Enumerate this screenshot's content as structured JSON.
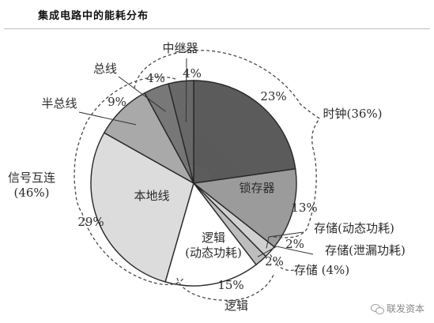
{
  "title": "集成电路中的能耗分布",
  "watermark": {
    "text": "联发资本",
    "icon": "wechat-icon"
  },
  "chart_data": {
    "type": "pie",
    "title": "集成电路中的能耗分布",
    "slices": [
      {
        "key": "clock",
        "label": "",
        "value": 23,
        "value_label": "23%",
        "color": "#5c5c5c"
      },
      {
        "key": "latch",
        "label": "锁存器",
        "value": 13,
        "value_label": "13%",
        "color": "#9b9b9b"
      },
      {
        "key": "mem_dynamic",
        "label": "",
        "value": 2,
        "value_label": "",
        "color": "#d0d0d0"
      },
      {
        "key": "mem_leak",
        "label": "",
        "value": 2,
        "value_label": "2%",
        "color": "#bdbdbd"
      },
      {
        "key": "logic",
        "label": "逻辑\n(动态功耗)",
        "value": 15,
        "value_label": "15%",
        "color": "#ffffff"
      },
      {
        "key": "local_wire",
        "label": "本地线",
        "value": 29,
        "value_label": "29%",
        "color": "#dcdcdc"
      },
      {
        "key": "semi_global",
        "label": "半总线",
        "value": 9,
        "value_label": "9%",
        "color": "#a9a9a9"
      },
      {
        "key": "global_bus",
        "label": "总线",
        "value": 4,
        "value_label": "4%",
        "color": "#7a7a7a"
      },
      {
        "key": "repeater",
        "label": "中继器",
        "value": 4,
        "value_label": "4%",
        "color": "#6a6a6a"
      }
    ],
    "extra_labels": {
      "mem_pct": "2%",
      "mem_dynamic": "存储(动态功耗)",
      "mem_leak": "存储(泄漏功耗)"
    },
    "groups": [
      {
        "key": "clock_group",
        "label": "时钟(36%)"
      },
      {
        "key": "interconnect_group",
        "label": "信号互连\n(46%)"
      },
      {
        "key": "memory_group",
        "label": "存储 (4%)"
      },
      {
        "key": "logic_group",
        "label": "逻辑"
      }
    ]
  }
}
